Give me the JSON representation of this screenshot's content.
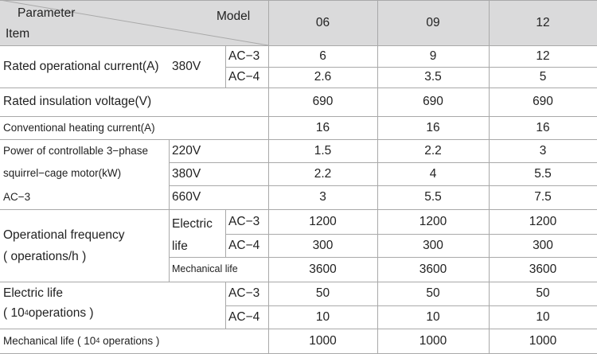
{
  "header": {
    "corner_top": "Parameter",
    "corner_bottom": "Item",
    "model_label": "Model",
    "models": [
      "06",
      "09",
      "12"
    ]
  },
  "rated_current": {
    "label": "Rated operational current(A)",
    "voltage": "380V",
    "rows": [
      {
        "category": "AC−3",
        "values": [
          "6",
          "9",
          "12"
        ]
      },
      {
        "category": "AC−4",
        "values": [
          "2.6",
          "3.5",
          "5"
        ]
      }
    ]
  },
  "insulation_voltage": {
    "label": "Rated insulation voltage(V)",
    "values": [
      "690",
      "690",
      "690"
    ]
  },
  "heating_current": {
    "label": "Conventional heating current(A)",
    "values": [
      "16",
      "16",
      "16"
    ]
  },
  "motor_power": {
    "label_lines": [
      "Power of controllable 3−phase",
      "squirrel−cage motor(kW)",
      "AC−3"
    ],
    "rows": [
      {
        "voltage": "220V",
        "values": [
          "1.5",
          "2.2",
          "3"
        ]
      },
      {
        "voltage": "380V",
        "values": [
          "2.2",
          "4",
          "5.5"
        ]
      },
      {
        "voltage": "660V",
        "values": [
          "3",
          "5.5",
          "7.5"
        ]
      }
    ]
  },
  "operational_frequency": {
    "label_line1": "Operational frequency",
    "label_line2": "( operations/h )",
    "electric_life_label_line1": "Electric",
    "electric_life_label_line2": "life",
    "rows": [
      {
        "category": "AC−3",
        "values": [
          "1200",
          "1200",
          "1200"
        ]
      },
      {
        "category": "AC−4",
        "values": [
          "300",
          "300",
          "300"
        ]
      }
    ],
    "mechanical_label": "Mechanical life",
    "mechanical_values": [
      "3600",
      "3600",
      "3600"
    ]
  },
  "electric_life": {
    "label_line1": "Electric life",
    "label_prefix": "( 10",
    "label_exponent": "4",
    "label_suffix": "operations )",
    "rows": [
      {
        "category": "AC−3",
        "values": [
          "50",
          "50",
          "50"
        ]
      },
      {
        "category": "AC−4",
        "values": [
          "10",
          "10",
          "10"
        ]
      }
    ]
  },
  "mechanical_life": {
    "label_prefix": "Mechanical life ( 10",
    "label_exponent": "4",
    "label_suffix": " operations )",
    "values": [
      "1000",
      "1000",
      "1000"
    ]
  }
}
